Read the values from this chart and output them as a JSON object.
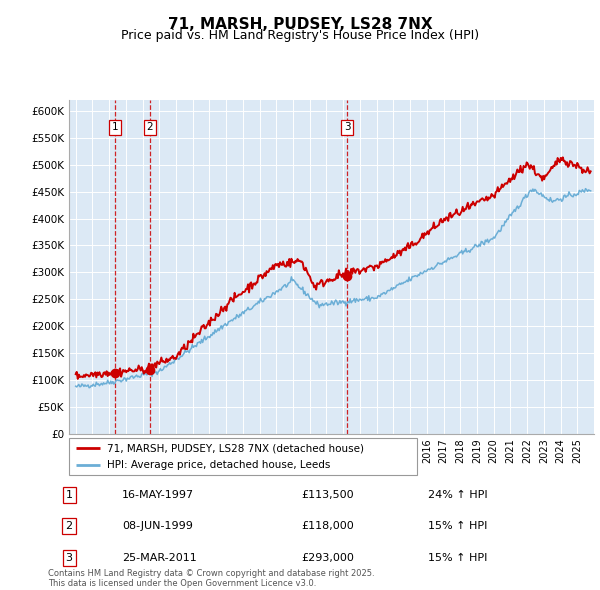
{
  "title": "71, MARSH, PUDSEY, LS28 7NX",
  "subtitle": "Price paid vs. HM Land Registry's House Price Index (HPI)",
  "title_fontsize": 11,
  "subtitle_fontsize": 9,
  "background_color": "#dce9f5",
  "ylabel_ticks": [
    "£0",
    "£50K",
    "£100K",
    "£150K",
    "£200K",
    "£250K",
    "£300K",
    "£350K",
    "£400K",
    "£450K",
    "£500K",
    "£550K",
    "£600K"
  ],
  "ytick_vals": [
    0,
    50000,
    100000,
    150000,
    200000,
    250000,
    300000,
    350000,
    400000,
    450000,
    500000,
    550000,
    600000
  ],
  "ylim": [
    0,
    620000
  ],
  "legend_line1": "71, MARSH, PUDSEY, LS28 7NX (detached house)",
  "legend_line2": "HPI: Average price, detached house, Leeds",
  "sale_year_floats": [
    1997.37,
    1999.44,
    2011.23
  ],
  "sale_prices": [
    113500,
    118000,
    293000
  ],
  "sale_labels": [
    "1",
    "2",
    "3"
  ],
  "footer_text": "Contains HM Land Registry data © Crown copyright and database right 2025.\nThis data is licensed under the Open Government Licence v3.0.",
  "table_data": [
    [
      "1",
      "16-MAY-1997",
      "£113,500",
      "24% ↑ HPI"
    ],
    [
      "2",
      "08-JUN-1999",
      "£118,000",
      "15% ↑ HPI"
    ],
    [
      "3",
      "25-MAR-2011",
      "£293,000",
      "15% ↑ HPI"
    ]
  ],
  "hpi_color": "#6baed6",
  "sale_line_color": "#cc0000",
  "vline_color": "#cc0000",
  "marker_color": "#cc0000",
  "xlim_left": 1994.6,
  "xlim_right": 2026.0
}
